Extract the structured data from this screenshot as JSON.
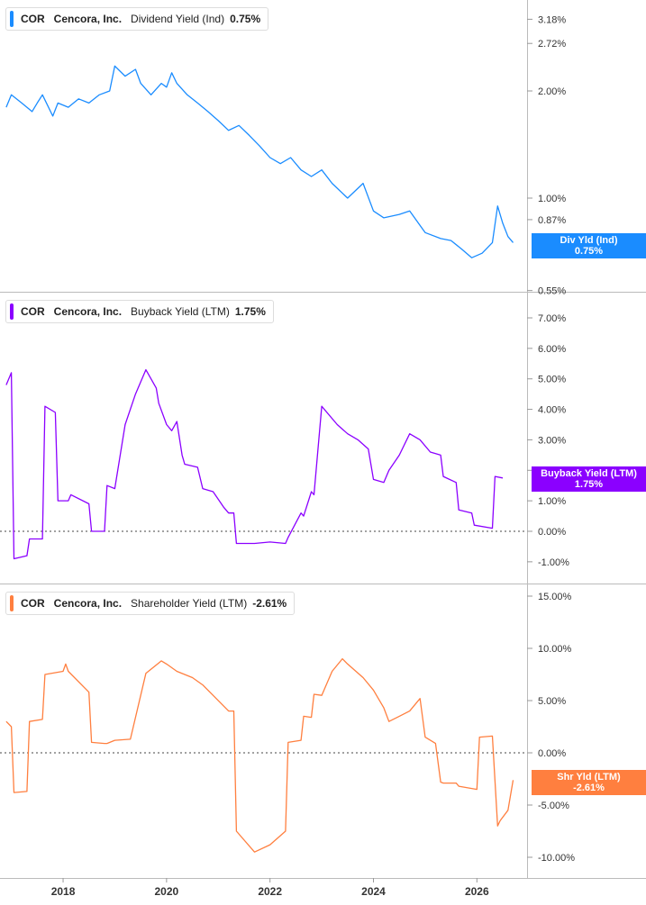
{
  "colors": {
    "dividend": "#1a8cff",
    "buyback": "#8b00ff",
    "shareholder": "#ff7f3f",
    "grid": "#d0d0d0",
    "zero_line": "#444444"
  },
  "x_axis": {
    "ticks": [
      "2018",
      "2020",
      "2022",
      "2024",
      "2026"
    ]
  },
  "panels": [
    {
      "id": "dividend",
      "legend": {
        "ticker": "COR",
        "company": "Cencora, Inc.",
        "metric": "Dividend Yield (Ind)",
        "value": "0.75%"
      },
      "badge": {
        "label": "Div Yld (Ind)",
        "value": "0.75%"
      },
      "ticks": [
        "3.18%",
        "2.72%",
        "2.00%",
        "1.00%",
        "0.87%",
        "0.55%"
      ]
    },
    {
      "id": "buyback",
      "legend": {
        "ticker": "COR",
        "company": "Cencora, Inc.",
        "metric": "Buyback Yield (LTM)",
        "value": "1.75%"
      },
      "badge": {
        "label": "Buyback Yield (LTM)",
        "value": "1.75%"
      },
      "ticks": [
        "7.00%",
        "6.00%",
        "5.00%",
        "4.00%",
        "3.00%",
        "2.00%",
        "1.00%",
        "0.00%",
        "-1.00%"
      ]
    },
    {
      "id": "shareholder",
      "legend": {
        "ticker": "COR",
        "company": "Cencora, Inc.",
        "metric": "Shareholder Yield (LTM)",
        "value": "-2.61%"
      },
      "badge": {
        "label": "Shr Yld (LTM)",
        "value": "-2.61%"
      },
      "ticks": [
        "15.00%",
        "10.00%",
        "5.00%",
        "0.00%",
        "-5.00%",
        "-10.00%"
      ]
    }
  ],
  "chart_data": [
    {
      "type": "line",
      "series": [
        {
          "name": "Dividend Yield (Ind)",
          "x": [
            2016.9,
            2017.0,
            2017.2,
            2017.4,
            2017.5,
            2017.6,
            2017.8,
            2017.9,
            2018.1,
            2018.3,
            2018.5,
            2018.7,
            2018.9,
            2019.0,
            2019.2,
            2019.4,
            2019.5,
            2019.7,
            2019.9,
            2020.0,
            2020.1,
            2020.2,
            2020.4,
            2020.6,
            2020.8,
            2021.0,
            2021.2,
            2021.4,
            2021.6,
            2021.8,
            2022.0,
            2022.2,
            2022.4,
            2022.6,
            2022.8,
            2023.0,
            2023.2,
            2023.5,
            2023.8,
            2024.0,
            2024.2,
            2024.5,
            2024.7,
            2025.0,
            2025.3,
            2025.5,
            2025.7,
            2025.9,
            2026.1,
            2026.3,
            2026.4,
            2026.5,
            2026.6,
            2026.7
          ],
          "y": [
            1.8,
            1.95,
            1.85,
            1.75,
            1.85,
            1.95,
            1.7,
            1.85,
            1.8,
            1.9,
            1.85,
            1.95,
            2.0,
            2.35,
            2.2,
            2.3,
            2.1,
            1.95,
            2.1,
            2.05,
            2.25,
            2.1,
            1.95,
            1.85,
            1.75,
            1.65,
            1.55,
            1.6,
            1.5,
            1.4,
            1.3,
            1.25,
            1.3,
            1.2,
            1.15,
            1.2,
            1.1,
            1.0,
            1.1,
            0.92,
            0.88,
            0.9,
            0.92,
            0.8,
            0.77,
            0.76,
            0.72,
            0.68,
            0.7,
            0.75,
            0.95,
            0.85,
            0.78,
            0.75
          ]
        }
      ],
      "y_scale": "log",
      "ylim": [
        0.55,
        3.3
      ]
    },
    {
      "type": "line",
      "series": [
        {
          "name": "Buyback Yield (LTM)",
          "x": [
            2016.9,
            2017.0,
            2017.05,
            2017.3,
            2017.35,
            2017.6,
            2017.65,
            2017.85,
            2017.9,
            2018.1,
            2018.15,
            2018.5,
            2018.55,
            2018.8,
            2018.85,
            2019.0,
            2019.2,
            2019.4,
            2019.6,
            2019.8,
            2019.85,
            2020.0,
            2020.1,
            2020.2,
            2020.3,
            2020.35,
            2020.6,
            2020.7,
            2020.9,
            2021.1,
            2021.2,
            2021.3,
            2021.35,
            2021.7,
            2022.0,
            2022.3,
            2022.35,
            2022.6,
            2022.65,
            2022.8,
            2022.85,
            2023.0,
            2023.3,
            2023.5,
            2023.7,
            2023.9,
            2024.0,
            2024.2,
            2024.3,
            2024.5,
            2024.7,
            2024.9,
            2025.1,
            2025.3,
            2025.35,
            2025.6,
            2025.65,
            2025.9,
            2025.95,
            2026.3,
            2026.35,
            2026.5
          ],
          "y": [
            4.8,
            5.2,
            -0.9,
            -0.8,
            -0.25,
            -0.25,
            4.1,
            3.9,
            1.0,
            1.0,
            1.2,
            0.9,
            0.0,
            0.0,
            1.5,
            1.4,
            3.5,
            4.5,
            5.3,
            4.7,
            4.2,
            3.5,
            3.3,
            3.6,
            2.5,
            2.2,
            2.1,
            1.4,
            1.3,
            0.8,
            0.6,
            0.6,
            -0.4,
            -0.4,
            -0.35,
            -0.4,
            -0.2,
            0.6,
            0.5,
            1.3,
            1.2,
            4.1,
            3.5,
            3.2,
            3.0,
            2.7,
            1.7,
            1.6,
            2.0,
            2.5,
            3.2,
            3.0,
            2.6,
            2.5,
            1.8,
            1.6,
            0.7,
            0.6,
            0.2,
            0.1,
            1.8,
            1.75
          ]
        }
      ],
      "ylim": [
        -1.0,
        7.0
      ]
    },
    {
      "type": "line",
      "series": [
        {
          "name": "Shareholder Yield (LTM)",
          "x": [
            2016.9,
            2017.0,
            2017.05,
            2017.3,
            2017.35,
            2017.6,
            2017.65,
            2018.0,
            2018.05,
            2018.1,
            2018.5,
            2018.55,
            2018.8,
            2018.85,
            2019.0,
            2019.3,
            2019.6,
            2019.85,
            2019.9,
            2020.0,
            2020.2,
            2020.5,
            2020.7,
            2020.9,
            2021.1,
            2021.2,
            2021.3,
            2021.35,
            2021.7,
            2022.0,
            2022.3,
            2022.35,
            2022.6,
            2022.65,
            2022.8,
            2022.85,
            2023.0,
            2023.2,
            2023.4,
            2023.5,
            2023.8,
            2024.0,
            2024.2,
            2024.3,
            2024.5,
            2024.7,
            2024.9,
            2025.0,
            2025.2,
            2025.3,
            2025.35,
            2025.6,
            2025.65,
            2026.0,
            2026.05,
            2026.3,
            2026.4,
            2026.45,
            2026.6,
            2026.7
          ],
          "y": [
            3.0,
            2.5,
            -3.8,
            -3.7,
            3.0,
            3.2,
            7.5,
            7.8,
            8.5,
            7.8,
            5.8,
            1.0,
            0.9,
            0.9,
            1.2,
            1.3,
            7.6,
            8.6,
            8.8,
            8.5,
            7.8,
            7.2,
            6.5,
            5.5,
            4.5,
            4.0,
            4.0,
            -7.5,
            -9.5,
            -8.8,
            -7.5,
            1.0,
            1.2,
            3.5,
            3.4,
            5.6,
            5.5,
            7.8,
            9.0,
            8.5,
            7.2,
            6.0,
            4.3,
            3.0,
            3.5,
            4.0,
            5.2,
            1.5,
            0.9,
            -2.8,
            -2.9,
            -2.9,
            -3.2,
            -3.5,
            1.5,
            1.6,
            -7.0,
            -6.5,
            -5.5,
            -2.61
          ]
        }
      ],
      "ylim": [
        -10.0,
        15.0
      ]
    }
  ]
}
